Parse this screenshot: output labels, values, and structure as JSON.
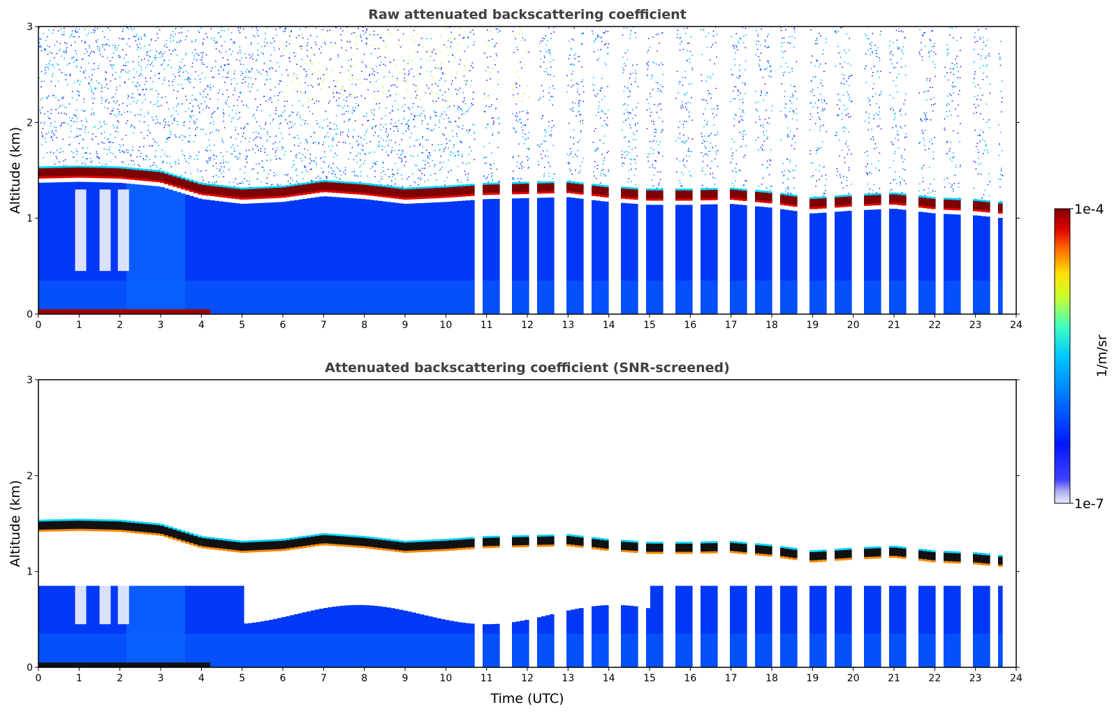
{
  "chart_data": [
    {
      "type": "heatmap",
      "title": "Raw attenuated backscattering coefficient",
      "xlabel": "",
      "ylabel": "Altitude (km)",
      "xlim": [
        0,
        24
      ],
      "ylim": [
        0,
        3
      ],
      "xticks": [
        "0",
        "1",
        "2",
        "3",
        "4",
        "5",
        "6",
        "7",
        "8",
        "9",
        "10",
        "11",
        "12",
        "13",
        "14",
        "15",
        "16",
        "17",
        "18",
        "19",
        "20",
        "21",
        "22",
        "23",
        "24"
      ],
      "yticks": [
        "0",
        "1",
        "2",
        "3"
      ],
      "screened": false
    },
    {
      "type": "heatmap",
      "title": "Attenuated backscattering coefficient (SNR-screened)",
      "xlabel": "Time (UTC)",
      "ylabel": "Altitude (km)",
      "xlim": [
        0,
        24
      ],
      "ylim": [
        0,
        3
      ],
      "xticks": [
        "0",
        "1",
        "2",
        "3",
        "4",
        "5",
        "6",
        "7",
        "8",
        "9",
        "10",
        "11",
        "12",
        "13",
        "14",
        "15",
        "16",
        "17",
        "18",
        "19",
        "20",
        "21",
        "22",
        "23",
        "24"
      ],
      "yticks": [
        "0",
        "1",
        "2",
        "3"
      ],
      "screened": true
    }
  ],
  "series_info": {
    "cloud_base_km": [
      [
        0.0,
        1.42
      ],
      [
        1.0,
        1.43
      ],
      [
        2.0,
        1.42
      ],
      [
        3.0,
        1.38
      ],
      [
        4.0,
        1.25
      ],
      [
        5.0,
        1.2
      ],
      [
        6.0,
        1.22
      ],
      [
        7.0,
        1.28
      ],
      [
        8.0,
        1.25
      ],
      [
        9.0,
        1.2
      ],
      [
        10.0,
        1.22
      ],
      [
        11.0,
        1.25
      ],
      [
        12.0,
        1.26
      ],
      [
        13.0,
        1.27
      ],
      [
        14.0,
        1.22
      ],
      [
        15.0,
        1.19
      ],
      [
        16.0,
        1.19
      ],
      [
        17.0,
        1.2
      ],
      [
        18.0,
        1.16
      ],
      [
        19.0,
        1.1
      ],
      [
        20.0,
        1.13
      ],
      [
        21.0,
        1.15
      ],
      [
        22.0,
        1.1
      ],
      [
        23.0,
        1.08
      ],
      [
        23.7,
        1.05
      ]
    ],
    "data_gaps_start_hour": 10.25
  },
  "colorbar": {
    "label": "1/m/sr",
    "max_label": "1e-4",
    "min_label": "1e-7",
    "colors": [
      "#00007f",
      "#0000e0",
      "#0040ff",
      "#0090ff",
      "#00d4ff",
      "#29ffce",
      "#7dff7a",
      "#ceff29",
      "#ffe600",
      "#ffa400",
      "#ff5900",
      "#e60000",
      "#7f0000"
    ]
  }
}
